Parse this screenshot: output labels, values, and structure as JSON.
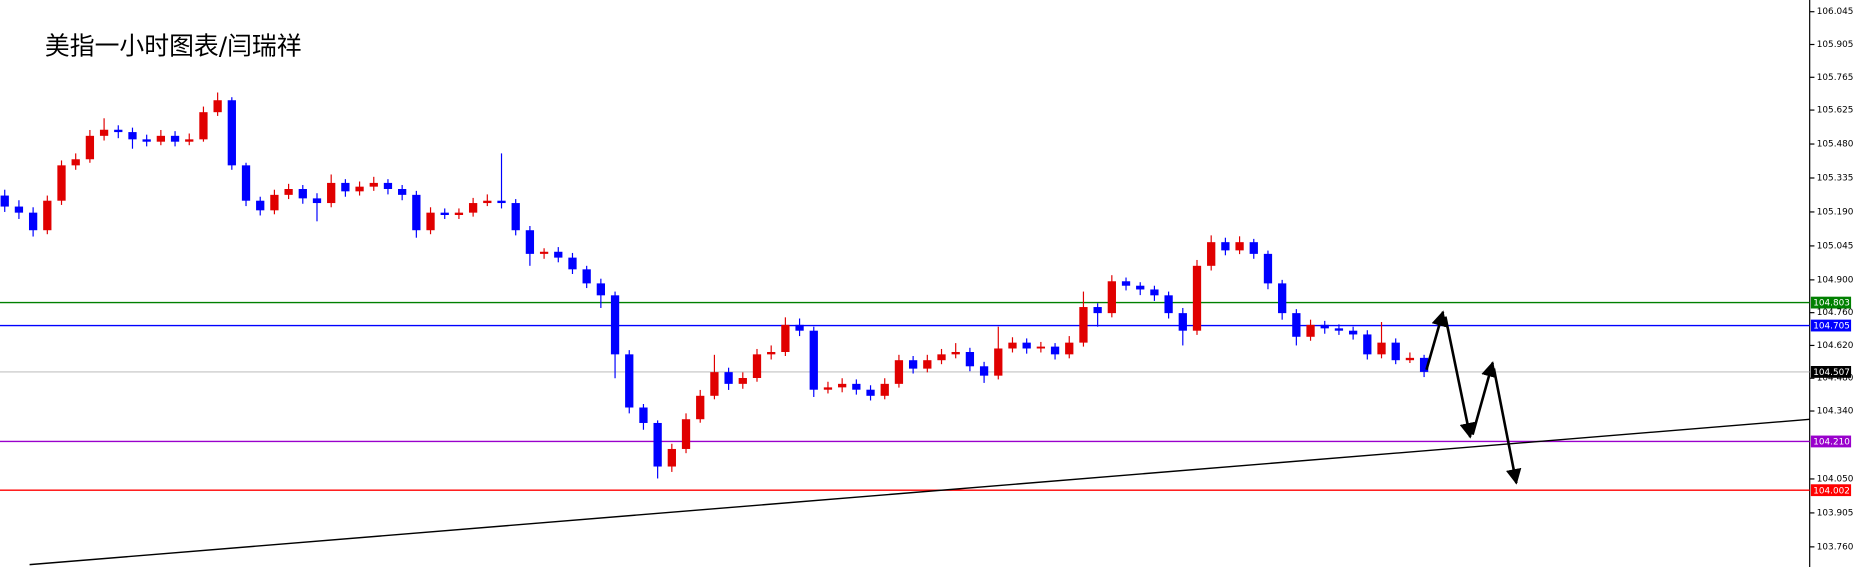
{
  "chart_data": {
    "type": "candlestick",
    "title": "美指一小时图表/闫瑞祥",
    "ylim": [
      103.674,
      106.095
    ],
    "yticks": [
      106.045,
      105.905,
      105.765,
      105.625,
      {
        "value": 105.48,
        "label": "105.480"
      },
      105.335,
      {
        "value": 105.19,
        "label": "105.190"
      },
      105.045,
      {
        "value": 104.9,
        "label": "104.900"
      },
      {
        "value": 104.76,
        "label": "104.760"
      },
      {
        "value": 104.62,
        "label": "104.620"
      },
      {
        "value": 104.48,
        "label": "104.480"
      },
      {
        "value": 104.34,
        "label": "104.340"
      },
      {
        "value": 104.05,
        "label": "104.050"
      },
      103.905,
      {
        "value": 103.76,
        "label": "103.760"
      }
    ],
    "up_color": "#e00000",
    "down_color": "#0000ff",
    "levels": [
      {
        "value": 104.803,
        "color": "#008000"
      },
      {
        "value": 104.705,
        "color": "#0000ff"
      },
      {
        "value": 104.507,
        "color": "#000000"
      },
      {
        "value": 104.21,
        "label": "104.210",
        "color": "#9900cc"
      },
      {
        "value": 104.002,
        "color": "#ff0000"
      }
    ],
    "ohlc": [
      [
        105.26,
        105.285,
        105.19,
        105.213
      ],
      [
        105.213,
        105.24,
        105.16,
        105.187
      ],
      [
        105.187,
        105.21,
        105.085,
        105.112
      ],
      [
        105.112,
        105.26,
        105.095,
        105.238
      ],
      [
        105.238,
        105.41,
        105.22,
        105.389
      ],
      [
        105.389,
        105.44,
        105.37,
        105.415
      ],
      [
        105.415,
        105.54,
        105.4,
        105.515
      ],
      [
        105.515,
        105.59,
        105.495,
        105.541
      ],
      [
        105.541,
        105.56,
        105.505,
        105.531
      ],
      [
        105.531,
        105.55,
        105.46,
        105.5
      ],
      [
        105.5,
        105.52,
        105.47,
        105.49
      ],
      [
        105.49,
        105.54,
        105.475,
        105.515
      ],
      [
        105.515,
        105.535,
        105.47,
        105.49
      ],
      [
        105.49,
        105.525,
        105.475,
        105.5
      ],
      [
        105.5,
        105.64,
        105.49,
        105.616
      ],
      [
        105.616,
        105.7,
        105.6,
        105.667
      ],
      [
        105.667,
        105.68,
        105.37,
        105.389
      ],
      [
        105.389,
        105.4,
        105.215,
        105.238
      ],
      [
        105.238,
        105.255,
        105.175,
        105.197
      ],
      [
        105.197,
        105.285,
        105.18,
        105.263
      ],
      [
        105.263,
        105.31,
        105.245,
        105.288
      ],
      [
        105.288,
        105.305,
        105.225,
        105.248
      ],
      [
        105.248,
        105.27,
        105.15,
        105.228
      ],
      [
        105.228,
        105.35,
        105.21,
        105.314
      ],
      [
        105.314,
        105.33,
        105.255,
        105.278
      ],
      [
        105.278,
        105.32,
        105.26,
        105.298
      ],
      [
        105.298,
        105.34,
        105.28,
        105.314
      ],
      [
        105.314,
        105.33,
        105.265,
        105.288
      ],
      [
        105.288,
        105.305,
        105.24,
        105.263
      ],
      [
        105.263,
        105.28,
        105.08,
        105.112
      ],
      [
        105.112,
        105.21,
        105.095,
        105.187
      ],
      [
        105.187,
        105.205,
        105.16,
        105.177
      ],
      [
        105.177,
        105.205,
        105.16,
        105.187
      ],
      [
        105.187,
        105.25,
        105.17,
        105.228
      ],
      [
        105.228,
        105.265,
        105.215,
        105.238
      ],
      [
        105.238,
        105.44,
        105.205,
        105.228
      ],
      [
        105.228,
        105.245,
        105.09,
        105.112
      ],
      [
        105.112,
        105.13,
        104.96,
        105.011
      ],
      [
        105.011,
        105.035,
        104.99,
        105.02
      ],
      [
        105.02,
        105.04,
        104.975,
        104.995
      ],
      [
        104.995,
        105.015,
        104.925,
        104.945
      ],
      [
        104.945,
        104.96,
        104.865,
        104.885
      ],
      [
        104.885,
        104.905,
        104.78,
        104.834
      ],
      [
        104.834,
        104.85,
        104.48,
        104.582
      ],
      [
        104.582,
        104.6,
        104.33,
        104.355
      ],
      [
        104.355,
        104.37,
        104.26,
        104.289
      ],
      [
        104.289,
        104.3,
        104.052,
        104.103
      ],
      [
        104.103,
        104.2,
        104.08,
        104.178
      ],
      [
        104.178,
        104.33,
        104.16,
        104.305
      ],
      [
        104.305,
        104.43,
        104.29,
        104.405
      ],
      [
        104.405,
        104.58,
        104.39,
        104.506
      ],
      [
        104.506,
        104.525,
        104.43,
        104.456
      ],
      [
        104.456,
        104.505,
        104.435,
        104.481
      ],
      [
        104.481,
        104.605,
        104.465,
        104.582
      ],
      [
        104.582,
        104.62,
        104.56,
        104.592
      ],
      [
        104.592,
        104.74,
        104.575,
        104.708
      ],
      [
        104.708,
        104.735,
        104.66,
        104.683
      ],
      [
        104.683,
        104.7,
        104.4,
        104.431
      ],
      [
        104.431,
        104.465,
        104.415,
        104.441
      ],
      [
        104.441,
        104.48,
        104.42,
        104.456
      ],
      [
        104.456,
        104.475,
        104.41,
        104.431
      ],
      [
        104.431,
        104.45,
        104.385,
        104.405
      ],
      [
        104.405,
        104.48,
        104.39,
        104.456
      ],
      [
        104.456,
        104.58,
        104.44,
        104.557
      ],
      [
        104.557,
        104.575,
        104.5,
        104.521
      ],
      [
        104.521,
        104.58,
        104.505,
        104.557
      ],
      [
        104.557,
        104.605,
        104.54,
        104.582
      ],
      [
        104.582,
        104.63,
        104.565,
        104.592
      ],
      [
        104.592,
        104.61,
        104.51,
        104.531
      ],
      [
        104.531,
        104.55,
        104.46,
        104.491
      ],
      [
        104.491,
        104.7,
        104.475,
        104.607
      ],
      [
        104.607,
        104.655,
        104.59,
        104.632
      ],
      [
        104.632,
        104.65,
        104.585,
        104.607
      ],
      [
        104.607,
        104.635,
        104.59,
        104.615
      ],
      [
        104.615,
        104.63,
        104.56,
        104.582
      ],
      [
        104.582,
        104.66,
        104.565,
        104.632
      ],
      [
        104.632,
        104.85,
        104.615,
        104.784
      ],
      [
        104.784,
        104.8,
        104.7,
        104.758
      ],
      [
        104.758,
        104.92,
        104.74,
        104.894
      ],
      [
        104.894,
        104.91,
        104.855,
        104.875
      ],
      [
        104.875,
        104.89,
        104.835,
        104.859
      ],
      [
        104.859,
        104.875,
        104.81,
        104.834
      ],
      [
        104.834,
        104.85,
        104.735,
        104.758
      ],
      [
        104.758,
        104.78,
        104.62,
        104.683
      ],
      [
        104.683,
        104.985,
        104.665,
        104.96
      ],
      [
        104.96,
        105.09,
        104.94,
        105.061
      ],
      [
        105.061,
        105.08,
        105.005,
        105.026
      ],
      [
        105.026,
        105.086,
        105.01,
        105.061
      ],
      [
        105.061,
        105.075,
        104.99,
        105.011
      ],
      [
        105.011,
        105.025,
        104.86,
        104.885
      ],
      [
        104.885,
        104.9,
        104.73,
        104.758
      ],
      [
        104.758,
        104.775,
        104.62,
        104.657
      ],
      [
        104.657,
        104.73,
        104.64,
        104.708
      ],
      [
        104.708,
        104.725,
        104.67,
        104.693
      ],
      [
        104.693,
        104.71,
        104.665,
        104.683
      ],
      [
        104.683,
        104.7,
        104.645,
        104.667
      ],
      [
        104.667,
        104.685,
        104.56,
        104.582
      ],
      [
        104.582,
        104.72,
        104.565,
        104.632
      ],
      [
        104.632,
        104.65,
        104.54,
        104.557
      ],
      [
        104.557,
        104.59,
        104.545,
        104.567
      ],
      [
        104.567,
        104.58,
        104.485,
        104.507
      ]
    ]
  }
}
